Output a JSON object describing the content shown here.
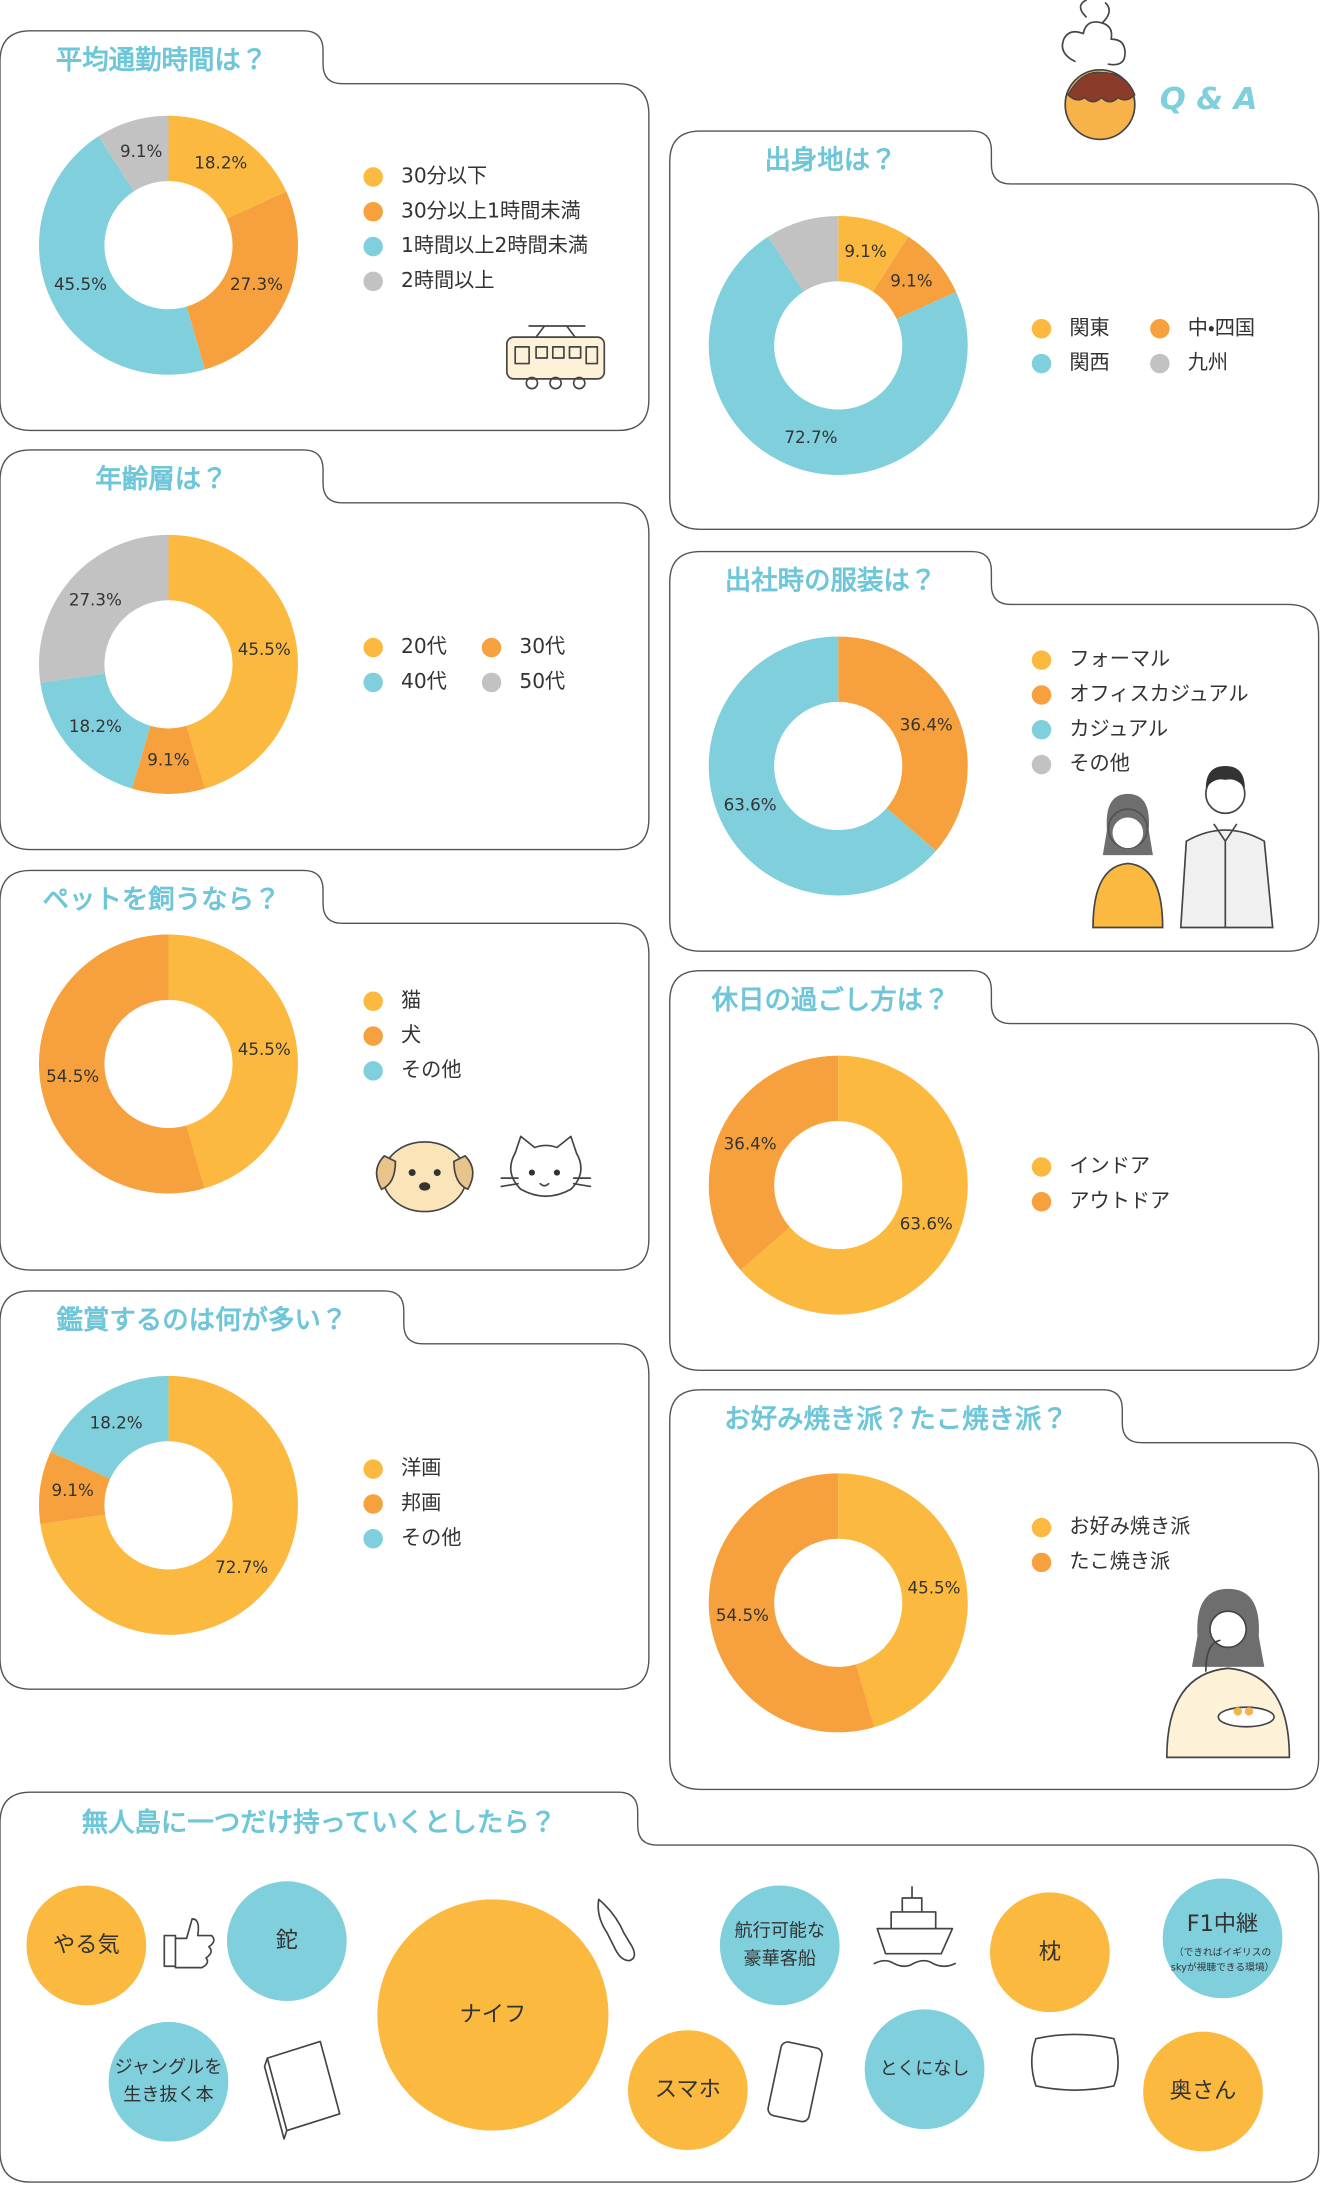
{
  "header": {
    "label": "Q & A"
  },
  "chart_data": [
    {
      "type": "donut",
      "title": "平均通勤時間は？",
      "categories": [
        "30分以下",
        "30分以上1時間未満",
        "1時間以上2時間未満",
        "2時間以上"
      ],
      "values": [
        18.2,
        27.3,
        45.5,
        9.1
      ],
      "value_labels": [
        "18.2%",
        "27.3%",
        "45.5%",
        "9.1%"
      ],
      "colors": [
        "#fcb93f",
        "#f6a13e",
        "#80cfdc",
        "#c2c2c2"
      ],
      "legend_columns": 1
    },
    {
      "type": "donut",
      "title": "出身地は？",
      "categories": [
        "関東",
        "中・四国",
        "関西",
        "九州"
      ],
      "values": [
        9.1,
        9.1,
        72.7,
        9.1
      ],
      "value_labels": [
        "9.1%",
        "9.1%",
        "72.7%",
        null
      ],
      "colors": [
        "#fcb93f",
        "#f6a13e",
        "#80cfdc",
        "#c2c2c2"
      ],
      "legend_columns": 2
    },
    {
      "type": "donut",
      "title": "年齢層は？",
      "categories": [
        "20代",
        "30代",
        "40代",
        "50代"
      ],
      "values": [
        45.5,
        9.1,
        18.2,
        27.3
      ],
      "value_labels": [
        "45.5%",
        "9.1%",
        "18.2%",
        "27.3%"
      ],
      "colors": [
        "#fcb93f",
        "#f6a13e",
        "#80cfdc",
        "#c2c2c2"
      ],
      "legend_columns": 2
    },
    {
      "type": "donut",
      "title": "出社時の服装は？",
      "categories": [
        "フォーマル",
        "オフィスカジュアル",
        "カジュアル",
        "その他"
      ],
      "values": [
        0,
        36.4,
        63.6,
        0
      ],
      "value_labels": [
        null,
        "36.4%",
        "63.6%",
        null
      ],
      "colors": [
        "#fcb93f",
        "#f6a13e",
        "#80cfdc",
        "#c2c2c2"
      ],
      "legend_columns": 1
    },
    {
      "type": "donut",
      "title": "ペットを飼うなら？",
      "categories": [
        "猫",
        "犬",
        "その他"
      ],
      "values": [
        45.5,
        54.5,
        0
      ],
      "value_labels": [
        "45.5%",
        "54.5%",
        null
      ],
      "colors": [
        "#fcb93f",
        "#f6a13e",
        "#80cfdc"
      ],
      "legend_columns": 1
    },
    {
      "type": "donut",
      "title": "休日の過ごし方は？",
      "categories": [
        "インドア",
        "アウトドア"
      ],
      "values": [
        63.6,
        36.4
      ],
      "value_labels": [
        "63.6%",
        "36.4%"
      ],
      "colors": [
        "#fcb93f",
        "#f6a13e"
      ],
      "legend_columns": 1
    },
    {
      "type": "donut",
      "title": "鑑賞するのは何が多い？",
      "categories": [
        "洋画",
        "邦画",
        "その他"
      ],
      "values": [
        72.7,
        9.1,
        18.2
      ],
      "value_labels": [
        "72.7%",
        "9.1%",
        "18.2%"
      ],
      "colors": [
        "#fcb93f",
        "#f6a13e",
        "#80cfdc"
      ],
      "legend_columns": 1
    },
    {
      "type": "donut",
      "title": "お好み焼き派？たこ焼き派？",
      "categories": [
        "お好み焼き派",
        "たこ焼き派"
      ],
      "values": [
        45.5,
        54.5
      ],
      "value_labels": [
        "45.5%",
        "54.5%"
      ],
      "colors": [
        "#fcb93f",
        "#f6a13e"
      ],
      "legend_columns": 1
    }
  ],
  "island": {
    "title": "無人島に一つだけ持っていくとしたら？",
    "items": [
      {
        "lines": [
          "やる気"
        ],
        "color": "#fcb93f"
      },
      {
        "lines": [
          "鉈"
        ],
        "color": "#80cfdc"
      },
      {
        "lines": [
          "ナイフ"
        ],
        "color": "#fcb93f"
      },
      {
        "lines": [
          "航行可能な",
          "豪華客船"
        ],
        "color": "#80cfdc"
      },
      {
        "lines": [
          "枕"
        ],
        "color": "#fcb93f"
      },
      {
        "lines": [
          "F1中継"
        ],
        "note": [
          "（できればイギリスの",
          "skyが視聴できる環境）"
        ],
        "color": "#80cfdc"
      },
      {
        "lines": [
          "ジャングルを",
          "生き抜く本"
        ],
        "color": "#80cfdc"
      },
      {
        "lines": [
          "スマホ"
        ],
        "color": "#fcb93f"
      },
      {
        "lines": [
          "とくになし"
        ],
        "color": "#80cfdc"
      },
      {
        "lines": [
          "奥さん"
        ],
        "color": "#fcb93f"
      }
    ]
  }
}
